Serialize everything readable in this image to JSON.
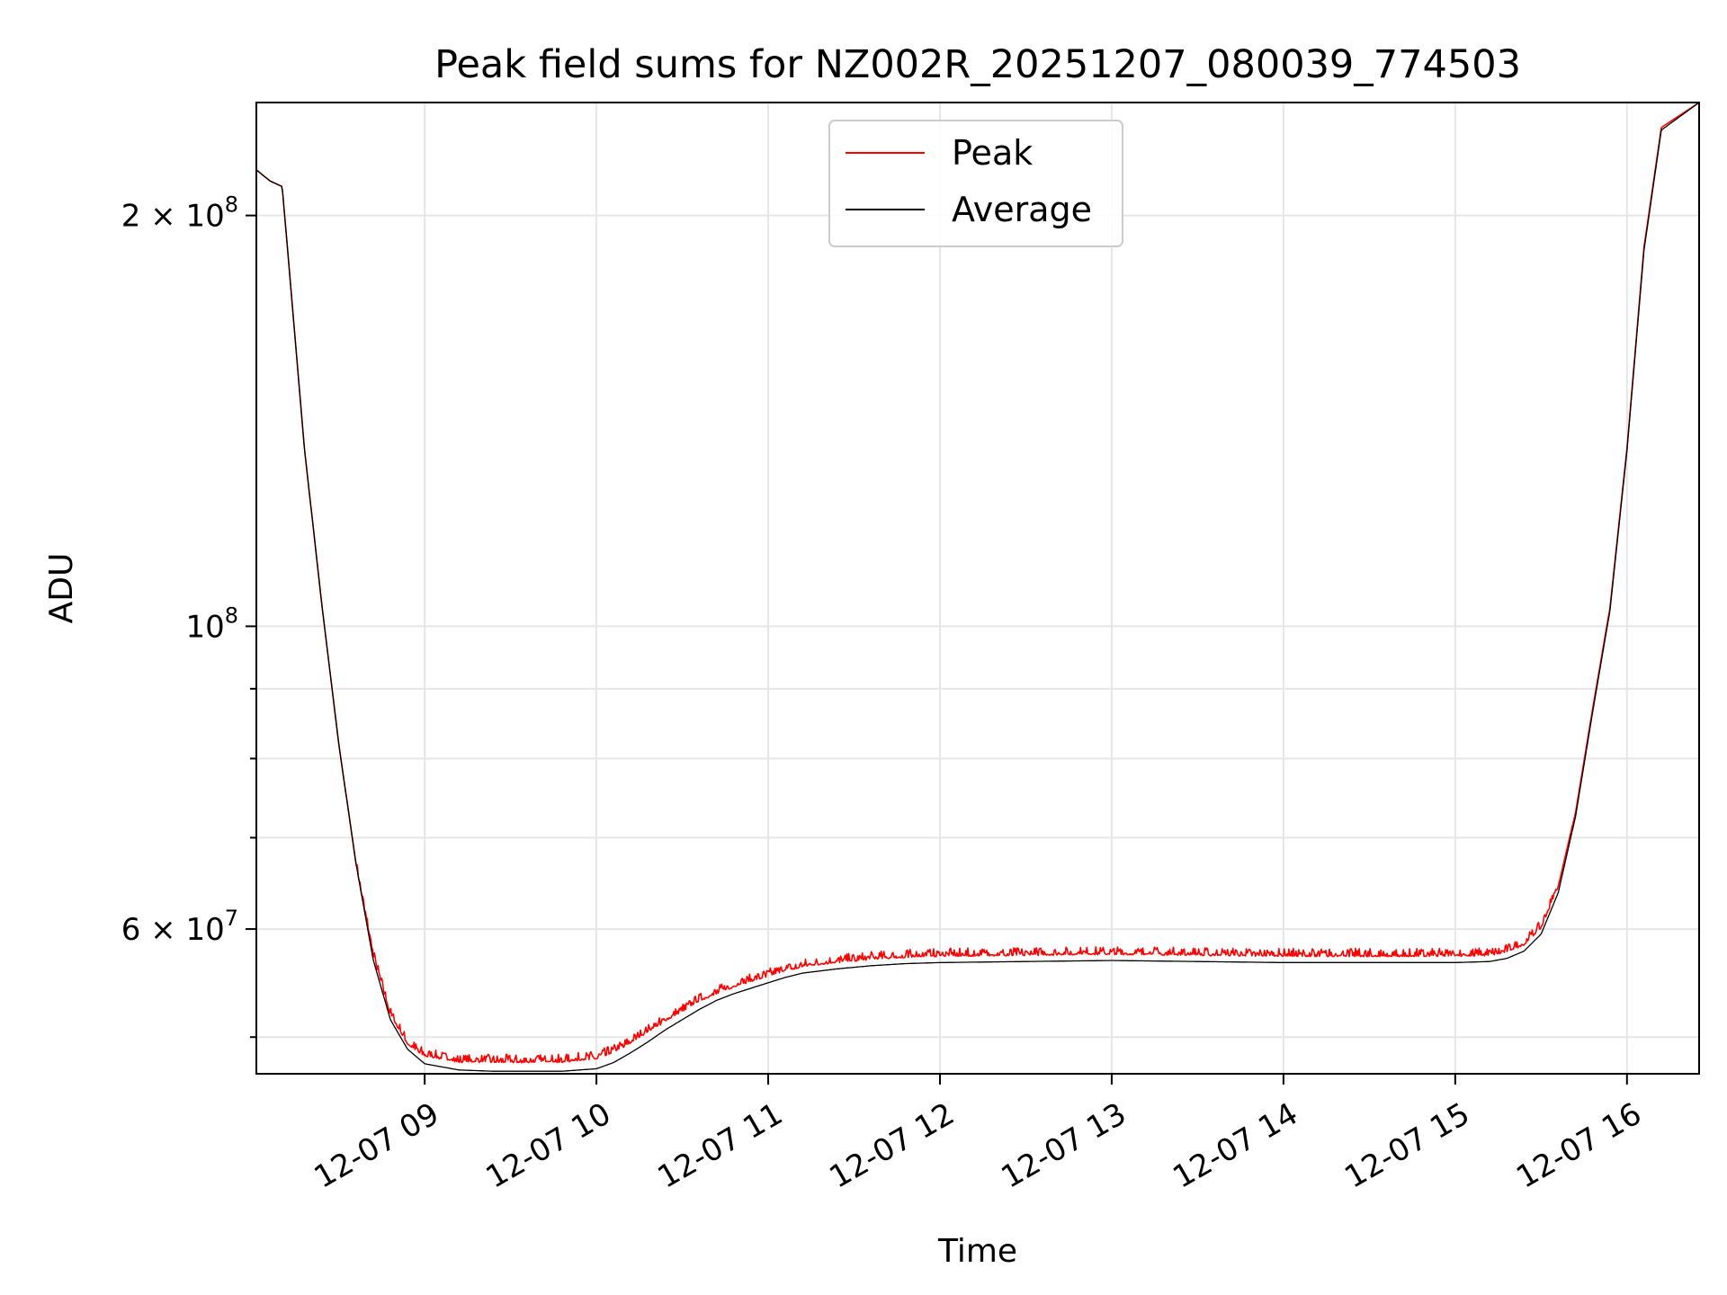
{
  "chart_data": {
    "type": "line",
    "title": "Peak field sums for NZ002R_20251207_080039_774503",
    "xlabel": "Time",
    "ylabel": "ADU",
    "yscale": "log",
    "grid": true,
    "legend_position": "top-center",
    "xlim": [
      8.02,
      16.42
    ],
    "ylim": [
      47000000,
      242000000
    ],
    "x_ticks": [
      {
        "value": 9,
        "label": "12-07 09"
      },
      {
        "value": 10,
        "label": "12-07 10"
      },
      {
        "value": 11,
        "label": "12-07 11"
      },
      {
        "value": 12,
        "label": "12-07 12"
      },
      {
        "value": 13,
        "label": "12-07 13"
      },
      {
        "value": 14,
        "label": "12-07 14"
      },
      {
        "value": 15,
        "label": "12-07 15"
      },
      {
        "value": 16,
        "label": "12-07 16"
      }
    ],
    "y_major_ticks": [
      {
        "value": 200000000,
        "base": "2 × 10",
        "exp": "8"
      },
      {
        "value": 100000000,
        "base": "10",
        "exp": "8"
      },
      {
        "value": 60000000,
        "base": "6 × 10",
        "exp": "7"
      }
    ],
    "y_minor_ticks": [
      50000000,
      70000000,
      80000000,
      90000000
    ],
    "x_unit": "hour of 2025-12-07",
    "series": [
      {
        "name": "Peak",
        "color": "#ff0000",
        "x": [
          8.02,
          8.1,
          8.17,
          8.2,
          8.3,
          8.4,
          8.5,
          8.6,
          8.7,
          8.8,
          8.9,
          9.0,
          9.2,
          9.4,
          9.6,
          9.8,
          10.0,
          10.1,
          10.2,
          10.3,
          10.4,
          10.5,
          10.6,
          10.7,
          10.8,
          10.9,
          11.0,
          11.1,
          11.2,
          11.4,
          11.6,
          11.8,
          12.0,
          12.5,
          13.0,
          13.5,
          14.0,
          14.5,
          15.0,
          15.2,
          15.3,
          15.4,
          15.5,
          15.6,
          15.7,
          15.8,
          15.9,
          16.0,
          16.1,
          16.2,
          16.42
        ],
        "values": [
          216000000,
          212000000,
          210000000,
          190000000,
          135000000,
          104000000,
          82000000,
          67000000,
          57500000,
          52000000,
          49500000,
          48500000,
          48000000,
          48000000,
          48000000,
          48000000,
          48300000,
          48800000,
          49600000,
          50500000,
          51400000,
          52300000,
          53200000,
          53900000,
          54500000,
          55000000,
          55500000,
          56000000,
          56400000,
          56800000,
          57100000,
          57300000,
          57400000,
          57500000,
          57600000,
          57500000,
          57400000,
          57400000,
          57400000,
          57500000,
          57800000,
          58500000,
          60200000,
          64500000,
          73000000,
          87000000,
          103000000,
          135000000,
          190000000,
          232000000,
          242000000
        ],
        "noisy_range_x": [
          8.6,
          15.6
        ],
        "noise_amplitude_fraction": 0.012
      },
      {
        "name": "Average",
        "color": "#000000",
        "x": [
          8.02,
          8.1,
          8.17,
          8.2,
          8.3,
          8.4,
          8.5,
          8.6,
          8.7,
          8.8,
          8.9,
          9.0,
          9.2,
          9.4,
          9.6,
          9.8,
          10.0,
          10.1,
          10.2,
          10.3,
          10.4,
          10.5,
          10.6,
          10.7,
          10.8,
          10.9,
          11.0,
          11.1,
          11.2,
          11.4,
          11.6,
          11.8,
          12.0,
          12.5,
          13.0,
          13.5,
          14.0,
          14.5,
          15.0,
          15.2,
          15.3,
          15.4,
          15.5,
          15.6,
          15.7,
          15.8,
          15.9,
          16.0,
          16.1,
          16.2,
          16.42
        ],
        "values": [
          216000000,
          212000000,
          210000000,
          190000000,
          135000000,
          104000000,
          82000000,
          67000000,
          57000000,
          51500000,
          49000000,
          47800000,
          47300000,
          47200000,
          47200000,
          47200000,
          47400000,
          47900000,
          48700000,
          49600000,
          50600000,
          51500000,
          52400000,
          53200000,
          53800000,
          54300000,
          54800000,
          55300000,
          55700000,
          56100000,
          56400000,
          56600000,
          56700000,
          56800000,
          56900000,
          56800000,
          56700000,
          56700000,
          56700000,
          56800000,
          57100000,
          57800000,
          59500000,
          63800000,
          72500000,
          86500000,
          102500000,
          134500000,
          189000000,
          231000000,
          242000000
        ]
      }
    ]
  }
}
